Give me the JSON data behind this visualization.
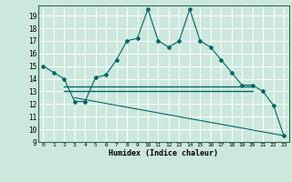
{
  "xlabel": "Humidex (Indice chaleur)",
  "bg_color": "#cce8dd",
  "grid_color": "#ffffff",
  "line_color": "#006666",
  "line1_x": [
    0,
    1,
    2,
    3,
    4,
    5,
    6,
    7,
    8,
    9,
    10,
    11,
    12,
    13,
    14,
    15,
    16,
    17,
    18,
    19,
    20,
    21,
    22,
    23
  ],
  "line1_y": [
    15.0,
    14.5,
    14.0,
    12.2,
    12.2,
    14.1,
    14.3,
    15.5,
    17.0,
    17.2,
    19.5,
    17.0,
    16.5,
    17.0,
    19.5,
    17.0,
    16.5,
    15.5,
    14.5,
    13.5,
    13.5,
    13.0,
    11.9,
    9.5
  ],
  "line2_x": [
    2,
    20
  ],
  "line2_y": [
    13.4,
    13.4
  ],
  "line3_x": [
    2,
    20
  ],
  "line3_y": [
    13.0,
    13.0
  ],
  "line4_x": [
    3,
    23
  ],
  "line4_y": [
    12.5,
    9.5
  ],
  "ylim": [
    9,
    19.8
  ],
  "xlim": [
    -0.5,
    23.5
  ],
  "yticks": [
    9,
    10,
    11,
    12,
    13,
    14,
    15,
    16,
    17,
    18,
    19
  ],
  "xticks": [
    0,
    1,
    2,
    3,
    4,
    5,
    6,
    7,
    8,
    9,
    10,
    11,
    12,
    13,
    14,
    15,
    16,
    17,
    18,
    19,
    20,
    21,
    22,
    23
  ]
}
